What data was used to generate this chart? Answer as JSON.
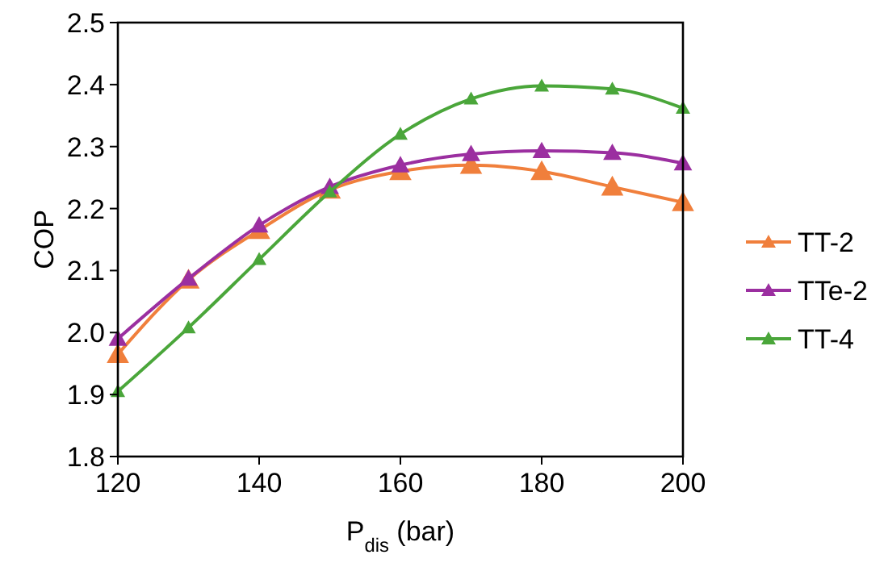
{
  "chart_data": {
    "type": "line",
    "xlabel": "P$_{dis}$ (bar)",
    "ylabel": "COP",
    "x": [
      120,
      130,
      140,
      150,
      160,
      170,
      180,
      190,
      200
    ],
    "series": [
      {
        "name": "TT-2",
        "color": "#f07f3c",
        "values": [
          1.965,
          2.085,
          2.165,
          2.23,
          2.26,
          2.27,
          2.26,
          2.235,
          2.21
        ]
      },
      {
        "name": "TTe-2",
        "color": "#9b2fa0",
        "values": [
          1.99,
          2.087,
          2.173,
          2.235,
          2.27,
          2.288,
          2.293,
          2.29,
          2.273
        ]
      },
      {
        "name": "TT-4",
        "color": "#4aa63a",
        "values": [
          1.905,
          2.008,
          2.118,
          2.227,
          2.32,
          2.377,
          2.398,
          2.393,
          2.362
        ]
      }
    ],
    "xlim": [
      120,
      200
    ],
    "xticks": [
      120,
      140,
      160,
      180,
      200
    ],
    "ylim": [
      1.8,
      2.5
    ],
    "yticks": [
      {
        "value": 1.8,
        "label": "1.8"
      },
      {
        "value": 1.9,
        "label": "1.9"
      },
      {
        "value": 2.0,
        "label": "2.0"
      },
      {
        "value": 2.1,
        "label": "2.1"
      },
      {
        "value": 2.2,
        "label": "2.2"
      },
      {
        "value": 2.3,
        "label": "2.3"
      },
      {
        "value": 2.4,
        "label": "2.4"
      },
      {
        "value": 2.5,
        "label": "2.5"
      }
    ],
    "legend": "right",
    "marker": "triangle",
    "line_style": "solid",
    "grid": false
  }
}
